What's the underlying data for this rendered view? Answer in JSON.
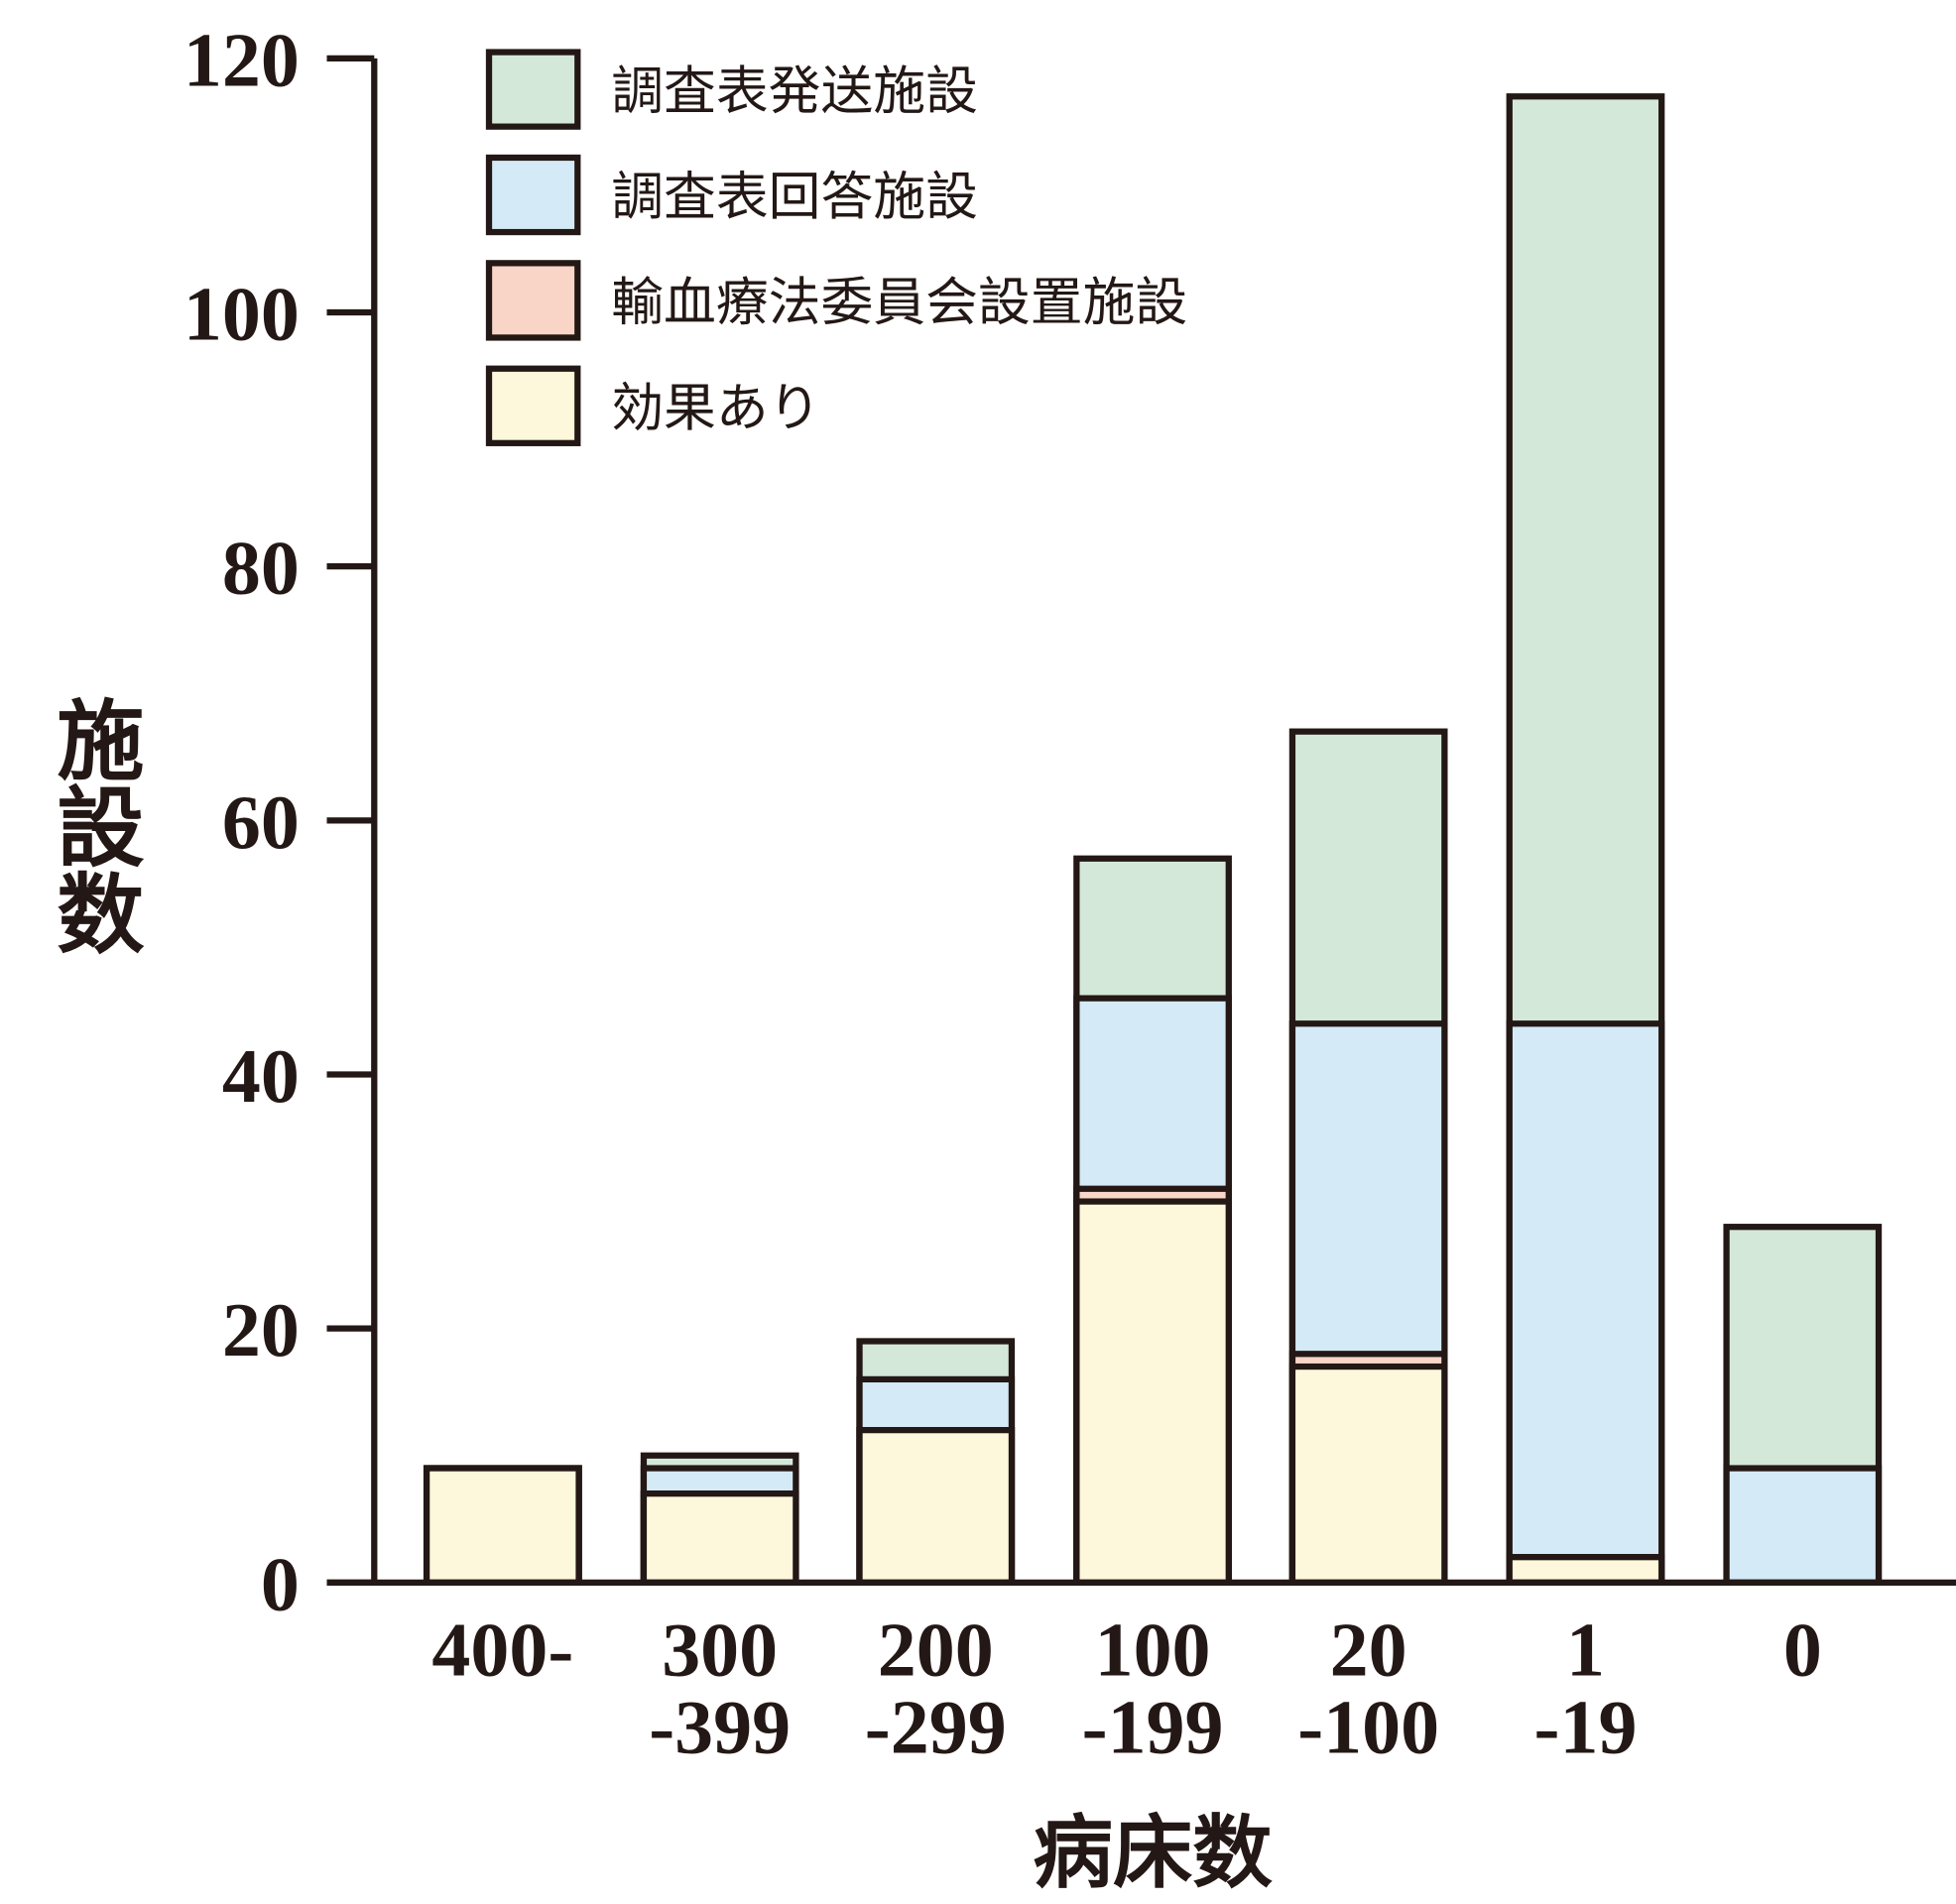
{
  "chart_data": {
    "type": "bar",
    "x_label": "病床数",
    "y_label": "施設数",
    "categories": [
      "400-",
      "300\n-399",
      "200\n-299",
      "100\n-199",
      "20\n-100",
      "1\n-19",
      "0"
    ],
    "series": [
      {
        "name": "調査表発送施設",
        "color": "#d4e8d9",
        "values": [
          9,
          10,
          19,
          57,
          67,
          117,
          28
        ]
      },
      {
        "name": "調査表回答施設",
        "color": "#d4eaf6",
        "values": [
          9,
          9,
          16,
          46,
          44,
          44,
          9
        ]
      },
      {
        "name": "輸血療法委員会設置施設",
        "color": "#f8d5c7",
        "values": [
          9,
          7,
          12,
          31,
          18,
          2,
          0
        ]
      },
      {
        "name": "効果あり",
        "color": "#fdf8dc",
        "values": [
          9,
          7,
          12,
          30,
          17,
          2,
          0
        ]
      }
    ],
    "ylim": [
      0,
      120
    ],
    "yticks": [
      0,
      20,
      40,
      60,
      80,
      100,
      120
    ]
  }
}
